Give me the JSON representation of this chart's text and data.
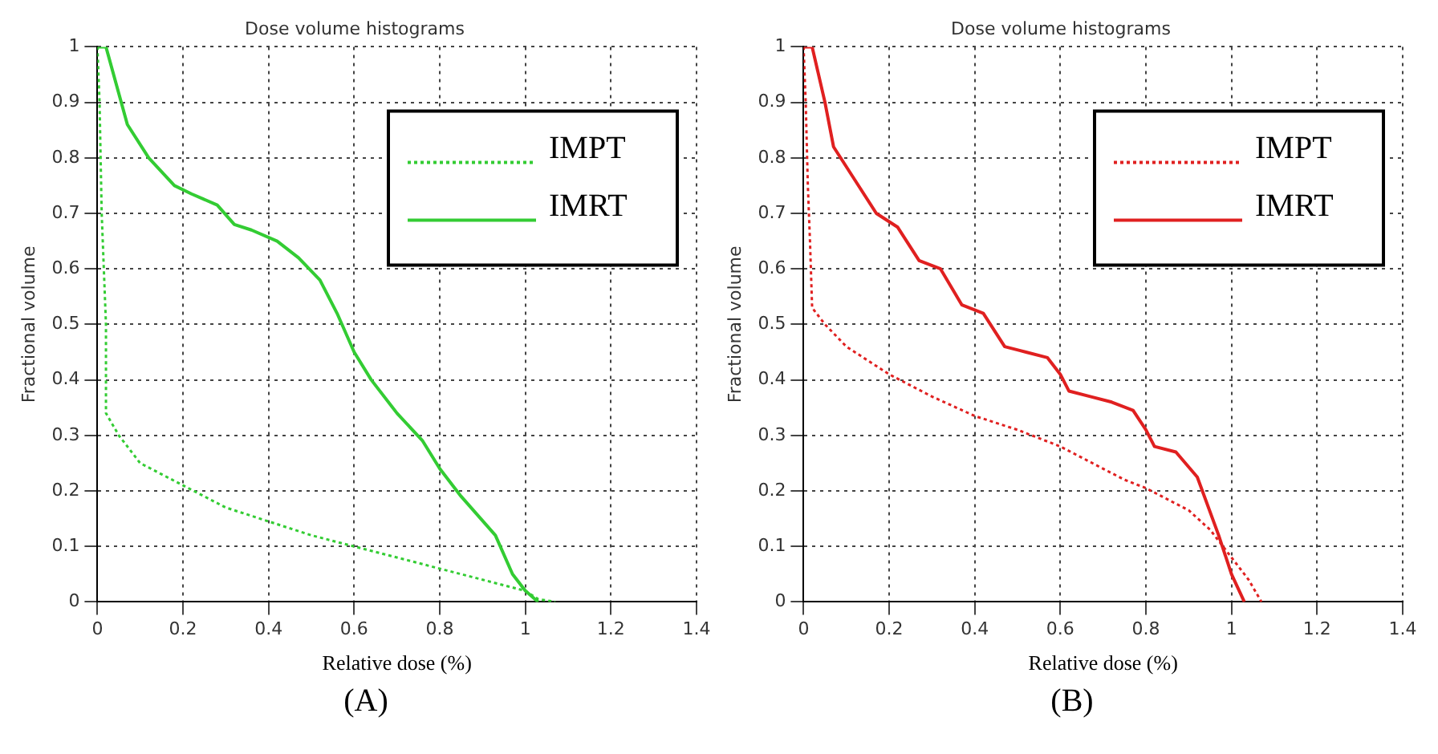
{
  "chart_data": [
    {
      "type": "line",
      "title": "Dose volume histograms",
      "xlabel": "Relative dose (%)",
      "ylabel": "Fractional volume",
      "annotations": [
        "(A)"
      ],
      "xlim": [
        0,
        1.4
      ],
      "xticks": [
        0,
        0.2,
        0.4,
        0.6,
        0.8,
        1,
        1.2,
        1.4
      ],
      "ylim": [
        0,
        1
      ],
      "yticks": [
        0,
        0.1,
        0.2,
        0.3,
        0.4,
        0.5,
        0.6,
        0.7,
        0.8,
        0.9,
        1
      ],
      "grid": true,
      "legend": "top right",
      "marker": "none",
      "series": [
        {
          "name": "IMPT",
          "color": "#33cc33",
          "line_style": "dotted",
          "x": [
            0,
            0.005,
            0.01,
            0.015,
            0.02,
            0.02,
            0.05,
            0.1,
            0.2,
            0.3,
            0.4,
            0.5,
            0.6,
            0.7,
            0.8,
            0.9,
            1.0,
            1.03,
            1.07
          ],
          "values": [
            1,
            0.9,
            0.7,
            0.6,
            0.5,
            0.34,
            0.3,
            0.25,
            0.21,
            0.17,
            0.145,
            0.12,
            0.1,
            0.08,
            0.06,
            0.04,
            0.02,
            0.005,
            0
          ]
        },
        {
          "name": "IMRT",
          "color": "#33cc33",
          "line_style": "solid",
          "x": [
            0,
            0.02,
            0.07,
            0.12,
            0.18,
            0.22,
            0.28,
            0.32,
            0.36,
            0.42,
            0.47,
            0.52,
            0.56,
            0.6,
            0.64,
            0.7,
            0.76,
            0.8,
            0.85,
            0.93,
            0.97,
            1.0,
            1.03
          ],
          "values": [
            1,
            1,
            0.86,
            0.8,
            0.75,
            0.735,
            0.715,
            0.68,
            0.67,
            0.65,
            0.62,
            0.58,
            0.52,
            0.45,
            0.4,
            0.34,
            0.29,
            0.24,
            0.19,
            0.12,
            0.05,
            0.02,
            0
          ]
        }
      ]
    },
    {
      "type": "line",
      "title": "Dose volume histograms",
      "xlabel": "Relative dose (%)",
      "ylabel": "Fractional volume",
      "annotations": [
        "(B)"
      ],
      "xlim": [
        0,
        1.4
      ],
      "xticks": [
        0,
        0.2,
        0.4,
        0.6,
        0.8,
        1,
        1.2,
        1.4
      ],
      "ylim": [
        0,
        1
      ],
      "yticks": [
        0,
        0.1,
        0.2,
        0.3,
        0.4,
        0.5,
        0.6,
        0.7,
        0.8,
        0.9,
        1
      ],
      "grid": true,
      "legend": "top right",
      "marker": "none",
      "series": [
        {
          "name": "IMPT",
          "color": "#e02020",
          "line_style": "dotted",
          "x": [
            0,
            0.005,
            0.01,
            0.015,
            0.02,
            0.05,
            0.1,
            0.2,
            0.3,
            0.4,
            0.5,
            0.6,
            0.7,
            0.75,
            0.8,
            0.85,
            0.9,
            0.95,
            1.0,
            1.04,
            1.07
          ],
          "values": [
            1,
            0.9,
            0.75,
            0.65,
            0.53,
            0.5,
            0.46,
            0.41,
            0.37,
            0.335,
            0.31,
            0.28,
            0.24,
            0.22,
            0.205,
            0.185,
            0.165,
            0.13,
            0.08,
            0.04,
            0
          ]
        },
        {
          "name": "IMRT",
          "color": "#e02020",
          "line_style": "solid",
          "x": [
            0,
            0.02,
            0.05,
            0.07,
            0.12,
            0.17,
            0.22,
            0.27,
            0.32,
            0.37,
            0.42,
            0.47,
            0.52,
            0.57,
            0.6,
            0.62,
            0.67,
            0.72,
            0.77,
            0.8,
            0.82,
            0.87,
            0.92,
            0.97,
            1.0,
            1.03
          ],
          "values": [
            1,
            1,
            0.9,
            0.82,
            0.76,
            0.7,
            0.675,
            0.615,
            0.6,
            0.535,
            0.52,
            0.46,
            0.45,
            0.44,
            0.41,
            0.38,
            0.37,
            0.36,
            0.345,
            0.31,
            0.28,
            0.27,
            0.225,
            0.12,
            0.05,
            0
          ]
        }
      ]
    }
  ]
}
